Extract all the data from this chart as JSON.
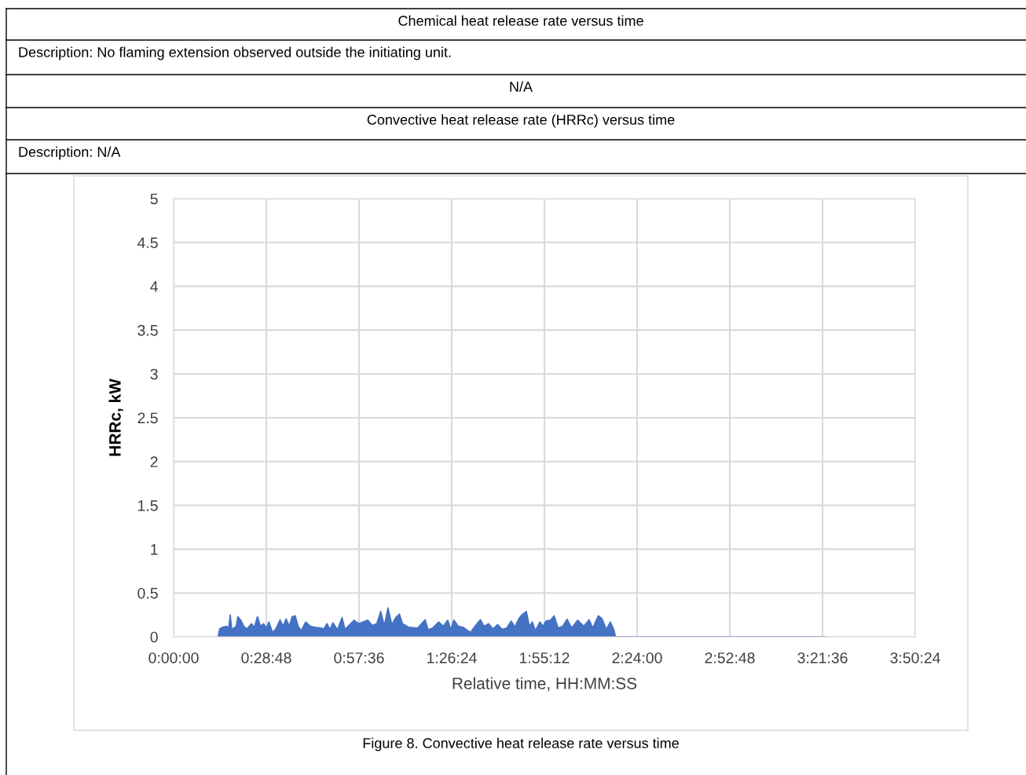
{
  "chart_data": {
    "type": "area",
    "title": "Convective heat release rate (HRRc) versus time",
    "subtitle": "Description: N/A",
    "annotations": [
      "Chemical heat release rate versus time",
      "Description: No flaming extension observed outside the initiating unit.",
      "N/A",
      "Figure 8. Convective heat release rate versus time"
    ],
    "xlabel": "Relative time, HH:MM:SS",
    "ylabel": "HRRc, kW",
    "xlim": [
      0,
      3.84
    ],
    "xticks": [
      {
        "value": 0,
        "label": "0:00:00"
      },
      {
        "value": 0.48,
        "label": "0:28:48"
      },
      {
        "value": 0.96,
        "label": "0:57:36"
      },
      {
        "value": 1.44,
        "label": "1:26:24"
      },
      {
        "value": 1.92,
        "label": "1:55:12"
      },
      {
        "value": 2.4,
        "label": "2:24:00"
      },
      {
        "value": 2.88,
        "label": "2:52:48"
      },
      {
        "value": 3.36,
        "label": "3:21:36"
      },
      {
        "value": 3.84,
        "label": "3:50:24"
      }
    ],
    "ylim": [
      0,
      5
    ],
    "yticks": [
      0,
      0.5,
      1,
      1.5,
      2,
      2.5,
      3,
      3.5,
      4,
      4.5,
      5
    ],
    "grid": true,
    "series": [
      {
        "color": "#4472c4",
        "x": [
          0.2306,
          0.2384,
          0.254,
          0.2744,
          0.2853,
          0.2931,
          0.301,
          0.3244,
          0.3323,
          0.3479,
          0.3635,
          0.3792,
          0.4027,
          0.4183,
          0.434,
          0.4496,
          0.4652,
          0.4809,
          0.4934,
          0.5122,
          0.5278,
          0.5513,
          0.5669,
          0.5826,
          0.5982,
          0.6139,
          0.6295,
          0.6451,
          0.6608,
          0.6842,
          0.7077,
          0.7312,
          0.7625,
          0.7781,
          0.7938,
          0.8094,
          0.8251,
          0.8486,
          0.872,
          0.8876,
          0.9033,
          0.9346,
          0.958,
          0.9815,
          1.005,
          1.0284,
          1.0519,
          1.0723,
          1.091,
          1.1098,
          1.1301,
          1.1505,
          1.1692,
          1.1849,
          1.2162,
          1.2631,
          1.3022,
          1.3179,
          1.3413,
          1.3726,
          1.3961,
          1.4196,
          1.4352,
          1.4508,
          1.4743,
          1.4978,
          1.5369,
          1.5604,
          1.5885,
          1.6073,
          1.6307,
          1.6542,
          1.6777,
          1.7011,
          1.7246,
          1.7481,
          1.7669,
          1.7872,
          1.8029,
          1.8263,
          1.842,
          1.8576,
          1.8733,
          1.8967,
          1.9124,
          1.928,
          1.9515,
          1.9703,
          1.9905,
          2.014,
          2.0375,
          2.061,
          2.0922,
          2.1235,
          2.1517,
          2.1705,
          2.1987,
          2.2174,
          2.2409,
          2.2612,
          2.28,
          2.2879,
          3.373
        ],
        "values": [
          0,
          0.09,
          0.11,
          0.12,
          0.1,
          0.25,
          0.085,
          0.12,
          0.23,
          0.19,
          0.12,
          0.09,
          0.15,
          0.11,
          0.23,
          0.12,
          0.15,
          0.1,
          0.17,
          0.05,
          0.085,
          0.195,
          0.12,
          0.205,
          0.12,
          0.23,
          0.24,
          0.12,
          0.07,
          0.17,
          0.12,
          0.11,
          0.1,
          0.09,
          0.15,
          0.085,
          0.16,
          0.08,
          0.22,
          0.085,
          0.12,
          0.19,
          0.15,
          0.17,
          0.19,
          0.13,
          0.15,
          0.29,
          0.125,
          0.33,
          0.14,
          0.22,
          0.26,
          0.15,
          0.11,
          0.1,
          0.195,
          0.08,
          0.1,
          0.17,
          0.12,
          0.19,
          0.08,
          0.19,
          0.12,
          0.11,
          0.05,
          0.12,
          0.195,
          0.12,
          0.15,
          0.09,
          0.14,
          0.085,
          0.1,
          0.18,
          0.11,
          0.205,
          0.25,
          0.29,
          0.12,
          0.17,
          0.07,
          0.17,
          0.12,
          0.18,
          0.19,
          0.24,
          0.1,
          0.12,
          0.2,
          0.1,
          0.19,
          0.12,
          0.195,
          0.1,
          0.24,
          0.21,
          0.085,
          0.17,
          0.08,
          0,
          0
        ]
      }
    ]
  }
}
